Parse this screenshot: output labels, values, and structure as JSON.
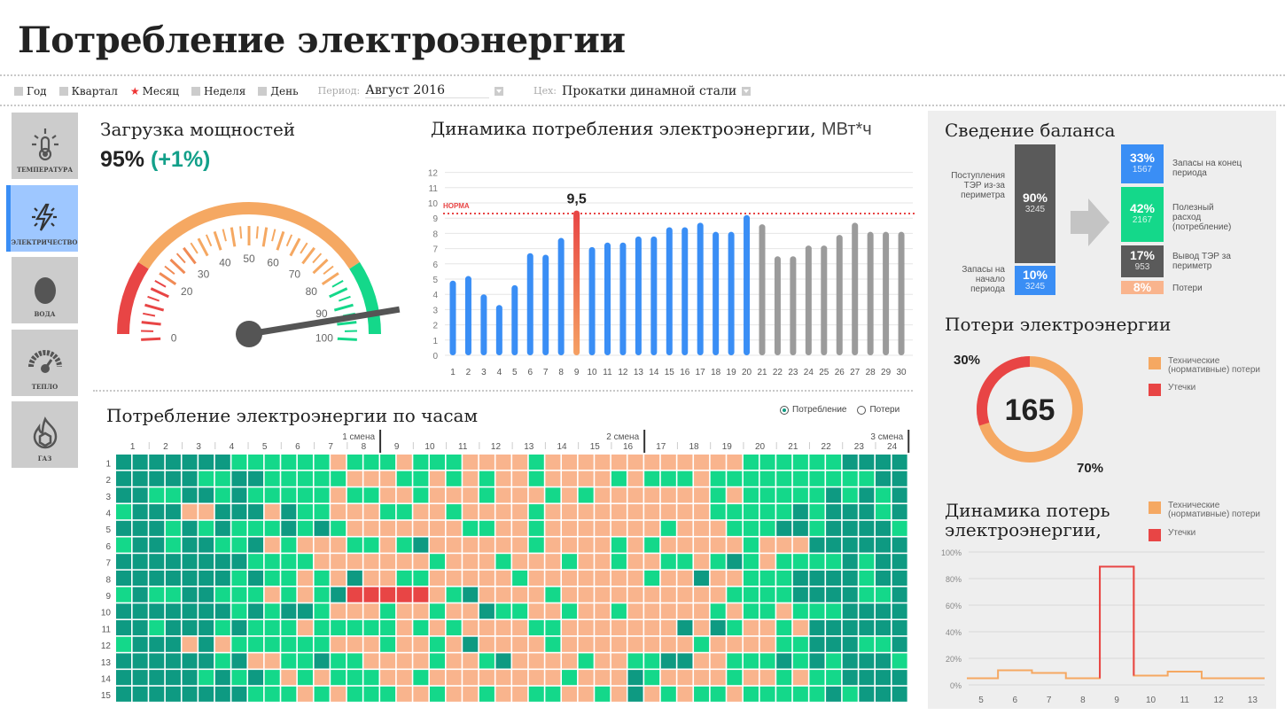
{
  "title": "Потребление электроэнергии",
  "filters": {
    "periods": [
      {
        "label": "Год",
        "selected": false
      },
      {
        "label": "Квартал",
        "selected": false
      },
      {
        "label": "Месяц",
        "selected": true
      },
      {
        "label": "Неделя",
        "selected": false
      },
      {
        "label": "День",
        "selected": false
      }
    ],
    "period_label": "Период:",
    "period_value": "Август 2016",
    "shop_label": "Цех:",
    "shop_value": "Прокатки динамной стали"
  },
  "sidebar": [
    {
      "label": "ТЕМПЕРАТУРА",
      "icon": "thermometer-icon",
      "active": false
    },
    {
      "label": "ЭЛЕКТРИЧЕСТВО",
      "icon": "lightning-icon",
      "active": true
    },
    {
      "label": "ВОДА",
      "icon": "water-drop-icon",
      "active": false
    },
    {
      "label": "ТЕПЛО",
      "icon": "heat-gauge-icon",
      "active": false
    },
    {
      "label": "ГАЗ",
      "icon": "gas-flame-icon",
      "active": false
    }
  ],
  "load": {
    "title": "Загрузка мощностей",
    "value": "95%",
    "delta": "(+1%)",
    "gauge_value": 95,
    "gauge_ticks": [
      "0",
      "20",
      "30",
      "40",
      "50",
      "60",
      "70",
      "80",
      "90",
      "100"
    ],
    "colors": {
      "low": "#e84545",
      "mid": "#f5a862",
      "high": "#14d88a",
      "delta": "#13a08a"
    }
  },
  "chart_data": [
    {
      "type": "bar",
      "title": "Динамика потребления электроэнергии,",
      "unit": "МВт*ч",
      "categories": [
        "1",
        "2",
        "3",
        "4",
        "5",
        "6",
        "7",
        "8",
        "9",
        "10",
        "11",
        "12",
        "13",
        "14",
        "15",
        "16",
        "17",
        "18",
        "19",
        "20",
        "21",
        "22",
        "23",
        "24",
        "25",
        "26",
        "27",
        "28",
        "29",
        "30"
      ],
      "values": [
        4.9,
        5.2,
        4.0,
        3.3,
        4.6,
        6.7,
        6.6,
        7.7,
        9.5,
        7.1,
        7.4,
        7.4,
        7.8,
        7.8,
        8.4,
        8.4,
        8.7,
        8.1,
        8.1,
        9.2,
        8.6,
        6.5,
        6.5,
        7.2,
        7.2,
        7.9,
        8.7,
        8.1,
        8.1,
        8.1
      ],
      "actual_days": 20,
      "peak_label": "9,5",
      "peak_index": 8,
      "norm": 9.3,
      "norm_label": "НОРМА",
      "ylim": [
        0,
        12
      ],
      "yticks": [
        "0",
        "1",
        "2",
        "3",
        "4",
        "5",
        "6",
        "7",
        "8",
        "9",
        "10",
        "11",
        "12"
      ],
      "colors": {
        "actual": "#3a8ef5",
        "forecast": "#9b9b9b",
        "peak": "#e84545",
        "norm": "#e84545"
      }
    },
    {
      "type": "heatmap",
      "title": "Потребление электроэнергии по часам",
      "modes": [
        {
          "label": "Потребление",
          "selected": true
        },
        {
          "label": "Потери",
          "selected": false
        }
      ],
      "hours": [
        "1",
        "2",
        "3",
        "4",
        "5",
        "6",
        "7",
        "8",
        "9",
        "10",
        "11",
        "12",
        "13",
        "14",
        "15",
        "16",
        "17",
        "18",
        "19",
        "20",
        "21",
        "22",
        "23",
        "24"
      ],
      "shifts": [
        "1 смена",
        "2 смена",
        "3 смена"
      ],
      "row_labels": [
        "1",
        "2",
        "3",
        "4",
        "5",
        "6",
        "7",
        "8",
        "9",
        "10",
        "11",
        "12",
        "13",
        "14",
        "15"
      ],
      "levels": {
        "D": "#0e9a82",
        "G": "#14d88a",
        "O": "#f9b48d",
        "R": "#e84545"
      },
      "rows": [
        "DDDDDDDGGGGGGOGGGOGGGOOOOGOOOOOOOOOOOOGGGGGGDDDD",
        "DDDDDGGDDGGGGGOOOGGOGOGOOGOOOOGOGGGOGGGGGGGGGGDD",
        "DDGGDDGDGGGGGOGGOOGOOOGOOOGOGOOOOOOOGOGGGGGDGDGD",
        "GDDDOODDDODGGOOOGGOOGOOOOGOOOOOOOOOOGGGGGDGDDDGD",
        "DDDGDGDGGGDGDGOOOOOOOGGOOGOOOOOOOGOOOGGGDDGDDDDG",
        "GDDGDDGGDOGOOOGGOGDOOOOOOGOOOOGOGOOOOOGOOODDDDDD",
        "DDDDDDDDGGGGOOOOOOOGOOOGOOOGOOGOOGGOGDGOGGGGDGDD",
        "DDDDDDDGDGGOGODOOGGOOOOOGOOOOOOOGOODOOGGGDDDDGDD",
        "GDGGDDGGGOGOGDRRRRROGDOOOOGOOOOOOOOOOGGGGDDDDGGD",
        "DDDDDDDGDGDDGOOOGOOGOODGGOOGOOGOOOOOGOGGOGGGDDDD",
        "DDGDDDGDGGGOGGGGGOGOGOOOOGGOOOOOOODODGOOGODDDDDD",
        "GDDDODOGGGGGGOOOGOOGODOOOOGOOOOOOOOGOOOOGGDDDGGD",
        "DDDDDDGDOOGGDGGOOOOGOOGDOOOOGOOGGDDOOGGGDGDGDDDG",
        "DDDDDGDGDGOGOGGGOOGOOOOOOOOGOOODGOOOOGOOGOGGDDDD",
        "DDDDDDDDGGGOGOGGGOOGOOGOOGGOOGODOGOGGOGGGGGDGDDD"
      ]
    },
    {
      "type": "pie",
      "title": "Потери электроэнергии",
      "center_label": "165",
      "slices": [
        {
          "name": "Технические (нормативные) потери",
          "value": 70,
          "label": "70%",
          "color": "#f5a862"
        },
        {
          "name": "Утечки",
          "value": 30,
          "label": "30%",
          "color": "#e84545"
        }
      ]
    },
    {
      "type": "line",
      "title": "Динамика потерь электроэнергии,",
      "x": [
        "5",
        "6",
        "7",
        "8",
        "9",
        "10",
        "11",
        "12",
        "13"
      ],
      "values": [
        5,
        11,
        9,
        5,
        89,
        7,
        10,
        5,
        5
      ],
      "leak_index": 4,
      "ylim": [
        0,
        100
      ],
      "yticks": [
        "0%",
        "20%",
        "40%",
        "60%",
        "80%",
        "100%"
      ],
      "legend": [
        {
          "name": "Технические (нормативные) потери",
          "color": "#f5a862"
        },
        {
          "name": "Утечки",
          "color": "#e84545"
        }
      ]
    }
  ],
  "balance": {
    "title": "Сведение баланса",
    "inflow": {
      "pct": "90%",
      "value": "3245",
      "label": "Поступления ТЭР из-за периметра",
      "color": "#5a5a5a"
    },
    "start": {
      "pct": "10%",
      "value": "3245",
      "label": "Запасы на начало периода",
      "color": "#3a8ef5"
    },
    "end": {
      "pct": "33%",
      "value": "1567",
      "label": "Запасы на конец периода",
      "color": "#3a8ef5"
    },
    "useful": {
      "pct": "42%",
      "value": "2167",
      "label": "Полезный расход (потребление)",
      "color": "#14d88a"
    },
    "out": {
      "pct": "17%",
      "value": "953",
      "label": "Вывод ТЭР за периметр",
      "color": "#5a5a5a"
    },
    "loss": {
      "pct": "8%",
      "label": "Потери",
      "color": "#f9b48d"
    }
  }
}
